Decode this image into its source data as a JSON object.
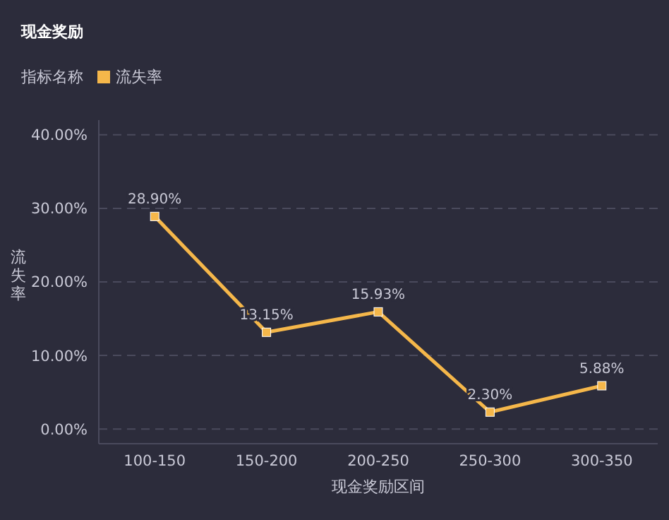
{
  "chart_data": {
    "type": "line",
    "title": "现金奖励",
    "xlabel": "现金奖励区间",
    "ylabel": "流失率",
    "legend_title": "指标名称",
    "categories": [
      "100-150",
      "150-200",
      "200-250",
      "250-300",
      "300-350"
    ],
    "series": [
      {
        "name": "流失率",
        "color": "#f5b74a",
        "values": [
          28.9,
          13.15,
          15.93,
          2.3,
          5.88
        ],
        "value_labels": [
          "28.90%",
          "13.15%",
          "15.93%",
          "2.30%",
          "5.88%"
        ]
      }
    ],
    "ylim": [
      -2,
      42
    ],
    "yticks": [
      {
        "value": 0,
        "label": "0.00%"
      },
      {
        "value": 10,
        "label": "10.00%"
      },
      {
        "value": 20,
        "label": "20.00%"
      },
      {
        "value": 30,
        "label": "30.00%"
      },
      {
        "value": 40,
        "label": "40.00%"
      }
    ],
    "grid": "y",
    "legend": "top left",
    "marker": "square",
    "line_style": "solid"
  }
}
